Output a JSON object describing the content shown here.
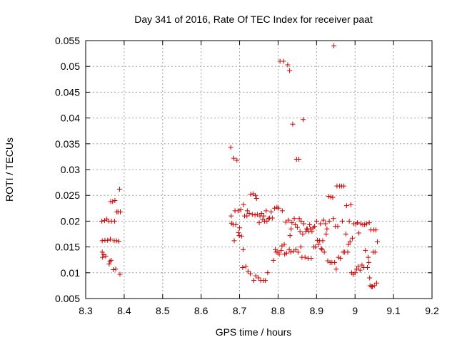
{
  "chart_data": {
    "type": "scatter",
    "title": "Day 341 of 2016, Rate Of TEC Index for receiver paat",
    "xlabel": "GPS time / hours",
    "ylabel": "ROTI / TECUs",
    "xlim": [
      8.3,
      9.2
    ],
    "ylim": [
      0.005,
      0.055
    ],
    "grid": true,
    "marker": "+",
    "color": "#cc0000",
    "xticks": [
      "8.3",
      "8.4",
      "8.5",
      "8.6",
      "8.7",
      "8.8",
      "8.9",
      "9",
      "9.1",
      "9.2"
    ],
    "yticks": [
      "0.005",
      "0.01",
      "0.015",
      "0.02",
      "0.025",
      "0.03",
      "0.035",
      "0.04",
      "0.045",
      "0.05",
      "0.055"
    ],
    "series": [
      {
        "name": "paat",
        "points": [
          [
            8.342,
            0.02
          ],
          [
            8.343,
            0.0162
          ],
          [
            8.343,
            0.014
          ],
          [
            8.344,
            0.013
          ],
          [
            8.347,
            0.0135
          ],
          [
            8.349,
            0.0201
          ],
          [
            8.35,
            0.0163
          ],
          [
            8.352,
            0.0132
          ],
          [
            8.355,
            0.0204
          ],
          [
            8.357,
            0.0163
          ],
          [
            8.36,
            0.02
          ],
          [
            8.361,
            0.0117
          ],
          [
            8.363,
            0.0122
          ],
          [
            8.364,
            0.0165
          ],
          [
            8.365,
            0.0238
          ],
          [
            8.366,
            0.0124
          ],
          [
            8.367,
            0.02
          ],
          [
            8.37,
            0.0238
          ],
          [
            8.372,
            0.0106
          ],
          [
            8.374,
            0.0162
          ],
          [
            8.375,
            0.02
          ],
          [
            8.376,
            0.024
          ],
          [
            8.378,
            0.0107
          ],
          [
            8.38,
            0.0162
          ],
          [
            8.381,
            0.0218
          ],
          [
            8.384,
            0.0218
          ],
          [
            8.386,
            0.0161
          ],
          [
            8.388,
            0.0262
          ],
          [
            8.389,
            0.0097
          ],
          [
            8.39,
            0.0218
          ],
          [
            8.677,
            0.0343
          ],
          [
            8.678,
            0.021
          ],
          [
            8.679,
            0.0196
          ],
          [
            8.683,
            0.0193
          ],
          [
            8.685,
            0.0322
          ],
          [
            8.686,
            0.0162
          ],
          [
            8.688,
            0.022
          ],
          [
            8.69,
            0.0193
          ],
          [
            8.693,
            0.0318
          ],
          [
            8.696,
            0.022
          ],
          [
            8.697,
            0.0178
          ],
          [
            8.699,
            0.0172
          ],
          [
            8.7,
            0.0187
          ],
          [
            8.703,
            0.0222
          ],
          [
            8.705,
            0.0171
          ],
          [
            8.708,
            0.011
          ],
          [
            8.709,
            0.0145
          ],
          [
            8.71,
            0.0232
          ],
          [
            8.713,
            0.021
          ],
          [
            8.716,
            0.0112
          ],
          [
            8.719,
            0.021
          ],
          [
            8.72,
            0.022
          ],
          [
            8.722,
            0.0103
          ],
          [
            8.725,
            0.0215
          ],
          [
            8.728,
            0.0098
          ],
          [
            8.729,
            0.0252
          ],
          [
            8.733,
            0.0213
          ],
          [
            8.735,
            0.0253
          ],
          [
            8.737,
            0.0085
          ],
          [
            8.74,
            0.0212
          ],
          [
            8.741,
            0.025
          ],
          [
            8.742,
            0.0094
          ],
          [
            8.744,
            0.0244
          ],
          [
            8.746,
            0.0213
          ],
          [
            8.749,
            0.009
          ],
          [
            8.751,
            0.0197
          ],
          [
            8.753,
            0.021
          ],
          [
            8.755,
            0.0085
          ],
          [
            8.757,
            0.0215
          ],
          [
            8.76,
            0.0203
          ],
          [
            8.762,
            0.0085
          ],
          [
            8.763,
            0.021
          ],
          [
            8.765,
            0.02
          ],
          [
            8.767,
            0.0085
          ],
          [
            8.769,
            0.022
          ],
          [
            8.771,
            0.02
          ],
          [
            8.773,
            0.01
          ],
          [
            8.775,
            0.0205
          ],
          [
            8.778,
            0.0206
          ],
          [
            8.782,
            0.0218
          ],
          [
            8.785,
            0.0206
          ],
          [
            8.788,
            0.0124
          ],
          [
            8.791,
            0.0225
          ],
          [
            8.793,
            0.0145
          ],
          [
            8.795,
            0.014
          ],
          [
            8.797,
            0.0227
          ],
          [
            8.799,
            0.014
          ],
          [
            8.801,
            0.0225
          ],
          [
            8.803,
            0.0136
          ],
          [
            8.805,
            0.051
          ],
          [
            8.808,
            0.0143
          ],
          [
            8.81,
            0.0152
          ],
          [
            8.811,
            0.022
          ],
          [
            8.814,
            0.051
          ],
          [
            8.816,
            0.0155
          ],
          [
            8.817,
            0.0136
          ],
          [
            8.82,
            0.0198
          ],
          [
            8.822,
            0.0138
          ],
          [
            8.825,
            0.0503
          ],
          [
            8.827,
            0.0202
          ],
          [
            8.829,
            0.0145
          ],
          [
            8.83,
            0.0492
          ],
          [
            8.831,
            0.0172
          ],
          [
            8.833,
            0.014
          ],
          [
            8.834,
            0.0185
          ],
          [
            8.836,
            0.0197
          ],
          [
            8.838,
            0.0388
          ],
          [
            8.84,
            0.0142
          ],
          [
            8.842,
            0.0205
          ],
          [
            8.845,
            0.0193
          ],
          [
            8.846,
            0.0145
          ],
          [
            8.848,
            0.032
          ],
          [
            8.85,
            0.0188
          ],
          [
            8.852,
            0.014
          ],
          [
            8.854,
            0.032
          ],
          [
            8.855,
            0.0205
          ],
          [
            8.857,
            0.018
          ],
          [
            8.859,
            0.015
          ],
          [
            8.86,
            0.02
          ],
          [
            8.862,
            0.013
          ],
          [
            8.864,
            0.0175
          ],
          [
            8.865,
            0.0397
          ],
          [
            8.867,
            0.0195
          ],
          [
            8.87,
            0.013
          ],
          [
            8.872,
            0.018
          ],
          [
            8.874,
            0.0185
          ],
          [
            8.876,
            0.0185
          ],
          [
            8.878,
            0.0128
          ],
          [
            8.88,
            0.018
          ],
          [
            8.882,
            0.0193
          ],
          [
            8.884,
            0.0185
          ],
          [
            8.886,
            0.0128
          ],
          [
            8.888,
            0.018
          ],
          [
            8.891,
            0.0187
          ],
          [
            8.893,
            0.015
          ],
          [
            8.895,
            0.019
          ],
          [
            8.897,
            0.015
          ],
          [
            8.9,
            0.02
          ],
          [
            8.902,
            0.0163
          ],
          [
            8.905,
            0.0155
          ],
          [
            8.908,
            0.0162
          ],
          [
            8.91,
            0.0195
          ],
          [
            8.912,
            0.0147
          ],
          [
            8.914,
            0.0145
          ],
          [
            8.916,
            0.0162
          ],
          [
            8.918,
            0.0202
          ],
          [
            8.92,
            0.014
          ],
          [
            8.923,
            0.0195
          ],
          [
            8.925,
            0.0175
          ],
          [
            8.927,
            0.0185
          ],
          [
            8.929,
            0.0123
          ],
          [
            8.931,
            0.0248
          ],
          [
            8.933,
            0.02
          ],
          [
            8.935,
            0.012
          ],
          [
            8.937,
            0.0247
          ],
          [
            8.94,
            0.012
          ],
          [
            8.942,
            0.0246
          ],
          [
            8.944,
            0.0205
          ],
          [
            8.945,
            0.054
          ],
          [
            8.947,
            0.012
          ],
          [
            8.949,
            0.019
          ],
          [
            8.951,
            0.0107
          ],
          [
            8.953,
            0.0268
          ],
          [
            8.955,
            0.019
          ],
          [
            8.957,
            0.013
          ],
          [
            8.96,
            0.0268
          ],
          [
            8.962,
            0.0128
          ],
          [
            8.965,
            0.0268
          ],
          [
            8.967,
            0.02
          ],
          [
            8.969,
            0.014
          ],
          [
            8.971,
            0.0268
          ],
          [
            8.973,
            0.014
          ],
          [
            8.976,
            0.0175
          ],
          [
            8.978,
            0.023
          ],
          [
            8.981,
            0.014
          ],
          [
            8.983,
            0.0155
          ],
          [
            8.985,
            0.02
          ],
          [
            8.987,
            0.016
          ],
          [
            8.989,
            0.0232
          ],
          [
            8.991,
            0.01
          ],
          [
            8.993,
            0.0167
          ],
          [
            8.995,
            0.0097
          ],
          [
            8.997,
            0.0195
          ],
          [
            9.0,
            0.01
          ],
          [
            9.002,
            0.0195
          ],
          [
            9.004,
            0.0107
          ],
          [
            9.006,
            0.0197
          ],
          [
            9.008,
            0.0112
          ],
          [
            9.01,
            0.0177
          ],
          [
            9.013,
            0.0105
          ],
          [
            9.015,
            0.0195
          ],
          [
            9.018,
            0.0115
          ],
          [
            9.02,
            0.0193
          ],
          [
            9.023,
            0.011
          ],
          [
            9.025,
            0.0193
          ],
          [
            9.027,
            0.0143
          ],
          [
            9.03,
            0.0195
          ],
          [
            9.032,
            0.011
          ],
          [
            9.034,
            0.013
          ],
          [
            9.036,
            0.012
          ],
          [
            9.037,
            0.0197
          ],
          [
            9.038,
            0.009
          ],
          [
            9.039,
            0.0075
          ],
          [
            9.041,
            0.0183
          ],
          [
            9.043,
            0.0073
          ],
          [
            9.045,
            0.0073
          ],
          [
            9.047,
            0.014
          ],
          [
            9.049,
            0.0183
          ],
          [
            9.05,
            0.0075
          ],
          [
            9.052,
            0.014
          ],
          [
            9.054,
            0.0183
          ],
          [
            9.056,
            0.008
          ],
          [
            9.058,
            0.016
          ]
        ]
      }
    ]
  }
}
